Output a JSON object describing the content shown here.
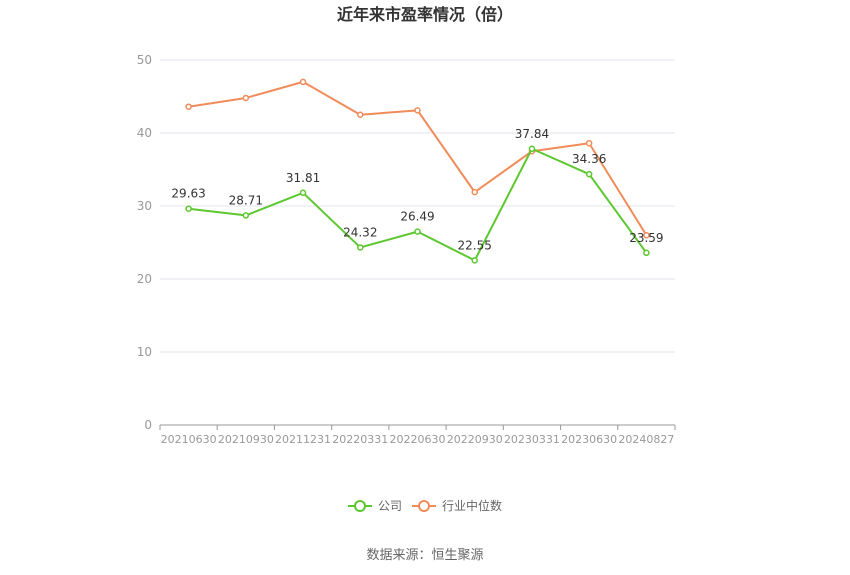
{
  "chart_data": {
    "type": "line",
    "title": "近年来市盈率情况（倍）",
    "categories": [
      "20210630",
      "20210930",
      "20211231",
      "20220331",
      "20220630",
      "20220930",
      "20230331",
      "20230630",
      "20240827"
    ],
    "ylim": [
      0,
      50
    ],
    "yticks": [
      0,
      10,
      20,
      30,
      40,
      50
    ],
    "grid": true,
    "legend_position": "bottom",
    "series": [
      {
        "name": "公司",
        "color": "#5cc72e",
        "values": [
          29.63,
          28.71,
          31.81,
          24.32,
          26.49,
          22.55,
          37.84,
          34.36,
          23.59
        ],
        "labels": [
          "29.63",
          "28.71",
          "31.81",
          "24.32",
          "26.49",
          "22.55",
          "37.84",
          "34.36",
          "23.59"
        ]
      },
      {
        "name": "行业中位数",
        "color": "#f08c5a",
        "values": [
          43.6,
          44.8,
          47.0,
          42.5,
          43.1,
          31.9,
          37.5,
          38.6,
          26.0
        ]
      }
    ],
    "source": "数据来源：恒生聚源"
  }
}
